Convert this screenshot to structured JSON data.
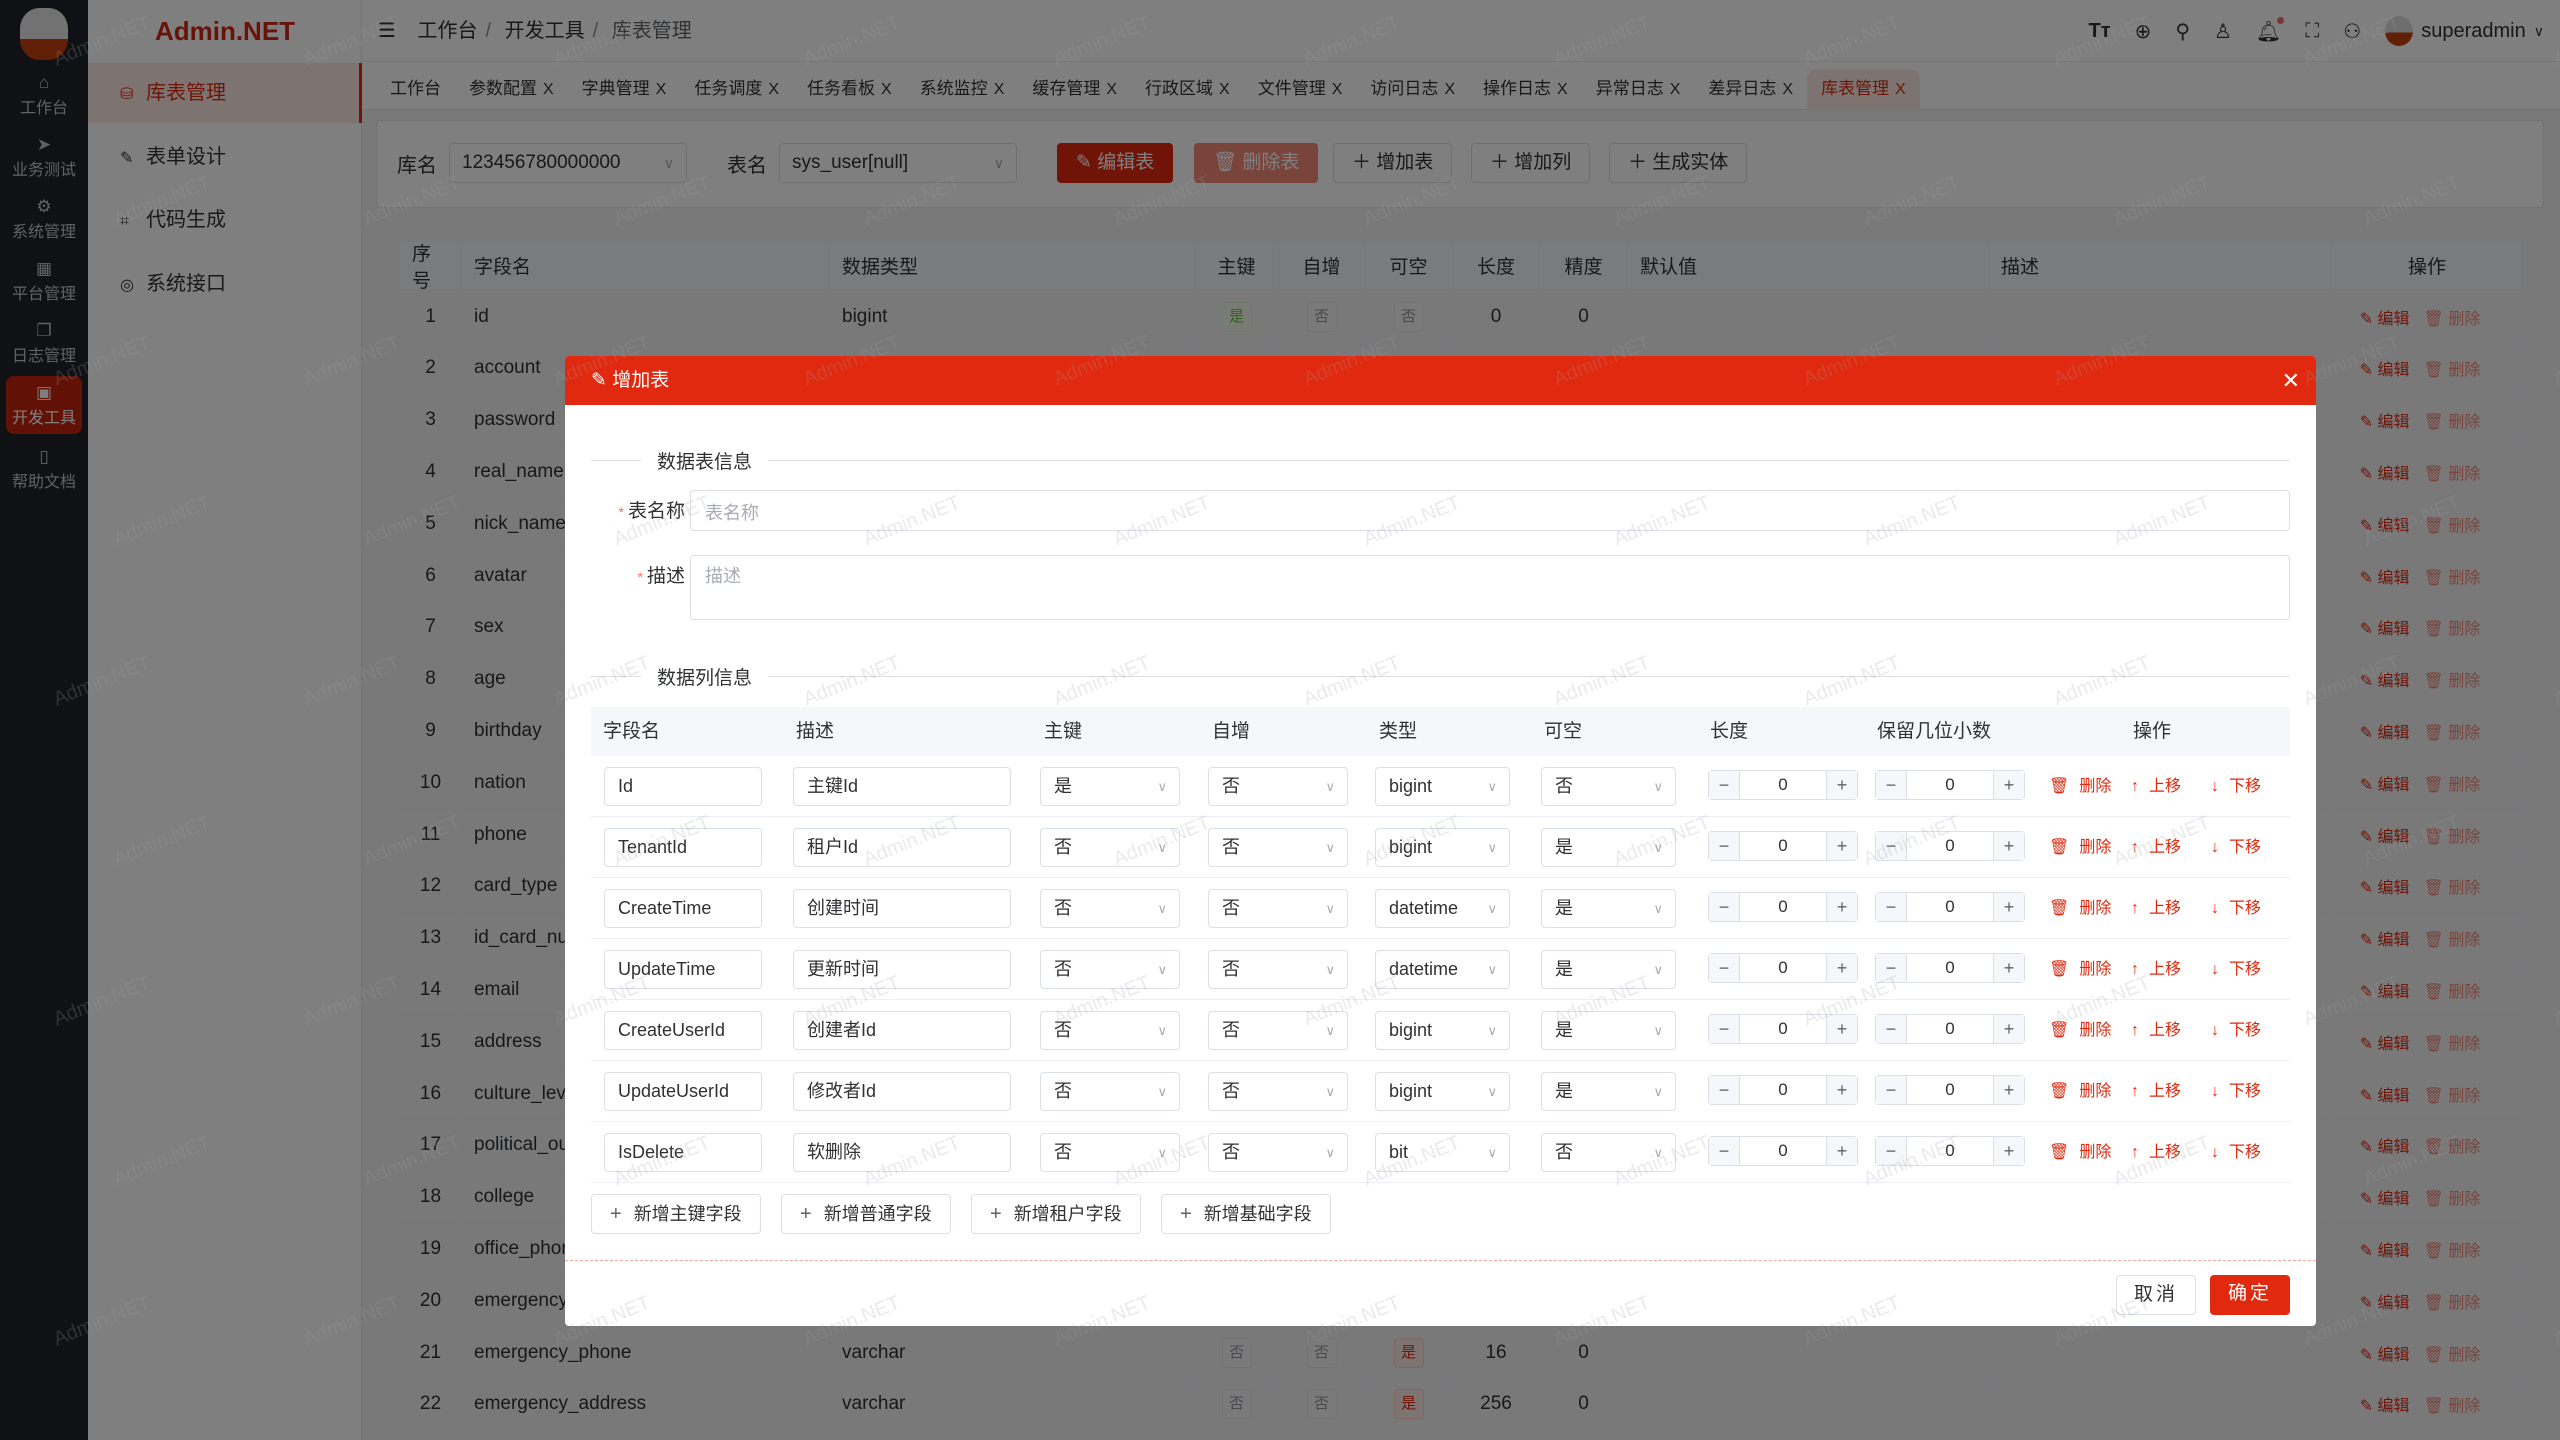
{
  "brand": "Admin.NET",
  "watermark": "Admin.NET",
  "iconbar": [
    {
      "label": "工作台",
      "icon": "home-icon"
    },
    {
      "label": "业务测试",
      "icon": "send-icon"
    },
    {
      "label": "系统管理",
      "icon": "gear-icon"
    },
    {
      "label": "平台管理",
      "icon": "grid-icon"
    },
    {
      "label": "日志管理",
      "icon": "copy-icon"
    },
    {
      "label": "开发工具",
      "icon": "cpu-icon",
      "active": true
    },
    {
      "label": "帮助文档",
      "icon": "book-icon"
    }
  ],
  "menu": [
    {
      "label": "库表管理",
      "icon": "database-icon",
      "active": true
    },
    {
      "label": "表单设计",
      "icon": "edit-icon"
    },
    {
      "label": "代码生成",
      "icon": "crop-icon"
    },
    {
      "label": "系统接口",
      "icon": "globe-icon"
    }
  ],
  "header": {
    "breadcrumb": [
      "工作台",
      "开发工具",
      "库表管理"
    ],
    "user": "superadmin"
  },
  "tabs": [
    {
      "label": "工作台",
      "closable": false
    },
    {
      "label": "参数配置",
      "closable": true
    },
    {
      "label": "字典管理",
      "closable": true
    },
    {
      "label": "任务调度",
      "closable": true
    },
    {
      "label": "任务看板",
      "closable": true
    },
    {
      "label": "系统监控",
      "closable": true
    },
    {
      "label": "缓存管理",
      "closable": true
    },
    {
      "label": "行政区域",
      "closable": true
    },
    {
      "label": "文件管理",
      "closable": true
    },
    {
      "label": "访问日志",
      "closable": true
    },
    {
      "label": "操作日志",
      "closable": true
    },
    {
      "label": "异常日志",
      "closable": true
    },
    {
      "label": "差异日志",
      "closable": true
    },
    {
      "label": "库表管理",
      "closable": true,
      "active": true
    }
  ],
  "tab_close": "X",
  "toolbar": {
    "db_label": "库名",
    "db_value": "123456780000000",
    "table_label": "表名",
    "table_value": "sys_user[null]",
    "edit_table": "编辑表",
    "delete_table": "删除表",
    "add_table": "增加表",
    "add_column": "增加列",
    "gen_entity": "生成实体"
  },
  "bg_table": {
    "columns": [
      "序号",
      "字段名",
      "数据类型",
      "主键",
      "自增",
      "可空",
      "长度",
      "精度",
      "默认值",
      "描述",
      "操作"
    ],
    "edit": "编辑",
    "delete": "删除",
    "rows": [
      {
        "no": "1",
        "name": "id",
        "type": "bigint",
        "pk": "是",
        "inc": "否",
        "null": "否",
        "len": "0",
        "prec": "0"
      },
      {
        "no": "2",
        "name": "account"
      },
      {
        "no": "3",
        "name": "password"
      },
      {
        "no": "4",
        "name": "real_name"
      },
      {
        "no": "5",
        "name": "nick_name"
      },
      {
        "no": "6",
        "name": "avatar"
      },
      {
        "no": "7",
        "name": "sex"
      },
      {
        "no": "8",
        "name": "age"
      },
      {
        "no": "9",
        "name": "birthday"
      },
      {
        "no": "10",
        "name": "nation"
      },
      {
        "no": "11",
        "name": "phone"
      },
      {
        "no": "12",
        "name": "card_type"
      },
      {
        "no": "13",
        "name": "id_card_nu"
      },
      {
        "no": "14",
        "name": "email"
      },
      {
        "no": "15",
        "name": "address"
      },
      {
        "no": "16",
        "name": "culture_lev"
      },
      {
        "no": "17",
        "name": "political_ou"
      },
      {
        "no": "18",
        "name": "college"
      },
      {
        "no": "19",
        "name": "office_phon"
      },
      {
        "no": "20",
        "name": "emergency"
      },
      {
        "no": "21",
        "name": "emergency_phone",
        "type": "varchar",
        "pk": "否",
        "inc": "否",
        "null": "是",
        "len": "16",
        "prec": "0"
      },
      {
        "no": "22",
        "name": "emergency_address",
        "type": "varchar",
        "pk": "否",
        "inc": "否",
        "null": "是",
        "len": "256",
        "prec": "0"
      }
    ]
  },
  "modal": {
    "title": "增加表",
    "section_table": "数据表信息",
    "table_name_label": "表名称",
    "table_name_placeholder": "表名称",
    "desc_label": "描述",
    "desc_placeholder": "描述",
    "section_columns": "数据列信息",
    "columns": [
      "字段名",
      "描述",
      "主键",
      "自增",
      "类型",
      "可空",
      "长度",
      "保留几位小数",
      "操作"
    ],
    "row_ops": {
      "delete": "删除",
      "up": "上移",
      "down": "下移"
    },
    "rows": [
      {
        "name": "Id",
        "desc": "主键Id",
        "pk": "是",
        "inc": "否",
        "type": "bigint",
        "nullable": "否",
        "length": "0",
        "decimals": "0"
      },
      {
        "name": "TenantId",
        "desc": "租户Id",
        "pk": "否",
        "inc": "否",
        "type": "bigint",
        "nullable": "是",
        "length": "0",
        "decimals": "0"
      },
      {
        "name": "CreateTime",
        "desc": "创建时间",
        "pk": "否",
        "inc": "否",
        "type": "datetime",
        "nullable": "是",
        "length": "0",
        "decimals": "0"
      },
      {
        "name": "UpdateTime",
        "desc": "更新时间",
        "pk": "否",
        "inc": "否",
        "type": "datetime",
        "nullable": "是",
        "length": "0",
        "decimals": "0"
      },
      {
        "name": "CreateUserId",
        "desc": "创建者Id",
        "pk": "否",
        "inc": "否",
        "type": "bigint",
        "nullable": "是",
        "length": "0",
        "decimals": "0"
      },
      {
        "name": "UpdateUserId",
        "desc": "修改者Id",
        "pk": "否",
        "inc": "否",
        "type": "bigint",
        "nullable": "是",
        "length": "0",
        "decimals": "0"
      },
      {
        "name": "IsDelete",
        "desc": "软删除",
        "pk": "否",
        "inc": "否",
        "type": "bit",
        "nullable": "否",
        "length": "0",
        "decimals": "0"
      }
    ],
    "add_buttons": [
      "新增主键字段",
      "新增普通字段",
      "新增租户字段",
      "新增基础字段"
    ],
    "cancel": "取消",
    "confirm": "确定"
  },
  "colors": {
    "primary": "#e0290f",
    "sidebar": "#1e222b",
    "success": "#67c23a"
  }
}
